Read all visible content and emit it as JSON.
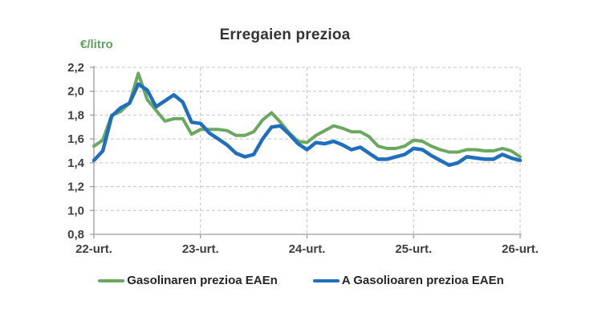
{
  "header": {
    "title": "Erregaien prezioa",
    "y_axis_unit": "€/litro"
  },
  "colors": {
    "gasoline_line": "#6aa85f",
    "diesel_line": "#1f6fbe",
    "gridline": "#c3c3c3",
    "axis": "#9d9d9d",
    "tick_label": "#3f3f3f",
    "title": "#333333",
    "y_unit_label": "#5fa35f",
    "background": "#ffffff"
  },
  "chart_data": {
    "type": "line",
    "title": "Erregaien prezioa",
    "ylabel": "€/litro",
    "xlabel": "",
    "grid": true,
    "legend_position": "bottom",
    "ylim": [
      0.8,
      2.2
    ],
    "y_step": 0.2,
    "y_tick_labels": [
      "2,2",
      "2,0",
      "1,8",
      "1,6",
      "1,4",
      "1,2",
      "1,0",
      "0,8"
    ],
    "x_tick_labels": [
      "22-urt.",
      "23-urt.",
      "24-urt.",
      "25-urt.",
      "26-urt."
    ],
    "x_unit": "monthly points, January 2022 - January 2026",
    "months_per_x_tick": 12,
    "series": [
      {
        "name": "Gasolinaren prezioa EAEn",
        "color": "#6aa85f",
        "values": [
          1.54,
          1.59,
          1.8,
          1.83,
          1.9,
          2.15,
          1.93,
          1.84,
          1.75,
          1.77,
          1.77,
          1.64,
          1.68,
          1.68,
          1.68,
          1.67,
          1.63,
          1.63,
          1.66,
          1.76,
          1.82,
          1.74,
          1.65,
          1.58,
          1.57,
          1.63,
          1.67,
          1.71,
          1.69,
          1.66,
          1.66,
          1.62,
          1.54,
          1.52,
          1.52,
          1.54,
          1.59,
          1.58,
          1.54,
          1.51,
          1.49,
          1.49,
          1.51,
          1.51,
          1.5,
          1.5,
          1.52,
          1.5,
          1.45
        ]
      },
      {
        "name": "A Gasolioaren prezioa EAEn",
        "color": "#1f6fbe",
        "values": [
          1.42,
          1.5,
          1.79,
          1.86,
          1.9,
          2.06,
          2.01,
          1.87,
          1.92,
          1.97,
          1.91,
          1.74,
          1.73,
          1.65,
          1.6,
          1.55,
          1.48,
          1.45,
          1.47,
          1.6,
          1.7,
          1.71,
          1.64,
          1.56,
          1.51,
          1.57,
          1.56,
          1.58,
          1.55,
          1.51,
          1.53,
          1.48,
          1.43,
          1.43,
          1.45,
          1.47,
          1.52,
          1.51,
          1.46,
          1.42,
          1.38,
          1.4,
          1.45,
          1.44,
          1.43,
          1.43,
          1.47,
          1.44,
          1.42
        ]
      }
    ]
  }
}
